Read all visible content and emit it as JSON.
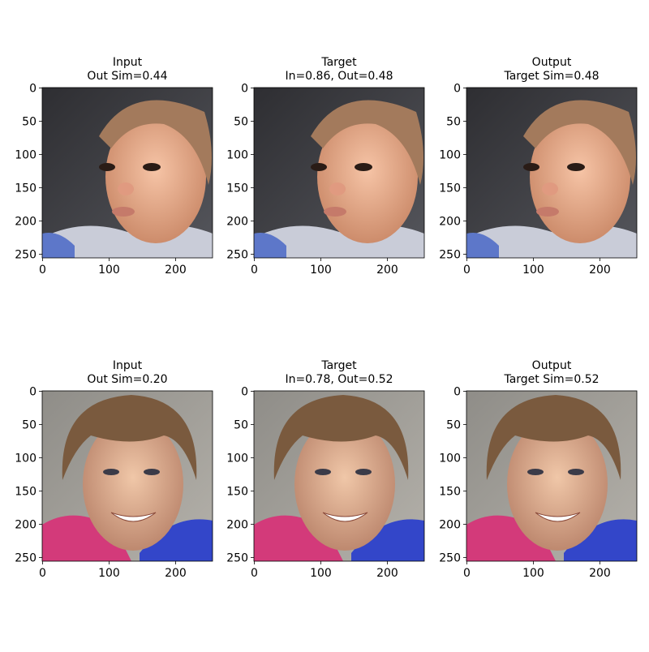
{
  "chart_data": [
    {
      "type": "image",
      "title": "Input",
      "subtitle": "Out Sim=0.44",
      "xlim": [
        -0.5,
        255.5
      ],
      "ylim": [
        255.5,
        -0.5
      ],
      "xticks": [
        0,
        100,
        200
      ],
      "yticks": [
        0,
        50,
        100,
        150,
        200,
        250
      ]
    },
    {
      "type": "image",
      "title": "Target",
      "subtitle": "In=0.86, Out=0.48",
      "xlim": [
        -0.5,
        255.5
      ],
      "ylim": [
        255.5,
        -0.5
      ],
      "xticks": [
        0,
        100,
        200
      ],
      "yticks": [
        0,
        50,
        100,
        150,
        200,
        250
      ]
    },
    {
      "type": "image",
      "title": "Output",
      "subtitle": "Target Sim=0.48",
      "xlim": [
        -0.5,
        255.5
      ],
      "ylim": [
        255.5,
        -0.5
      ],
      "xticks": [
        0,
        100,
        200
      ],
      "yticks": [
        0,
        50,
        100,
        150,
        200,
        250
      ]
    },
    {
      "type": "image",
      "title": "Input",
      "subtitle": "Out Sim=0.20",
      "xlim": [
        -0.5,
        255.5
      ],
      "ylim": [
        255.5,
        -0.5
      ],
      "xticks": [
        0,
        100,
        200
      ],
      "yticks": [
        0,
        50,
        100,
        150,
        200,
        250
      ]
    },
    {
      "type": "image",
      "title": "Target",
      "subtitle": "In=0.78, Out=0.52",
      "xlim": [
        -0.5,
        255.5
      ],
      "ylim": [
        255.5,
        -0.5
      ],
      "xticks": [
        0,
        100,
        200
      ],
      "yticks": [
        0,
        50,
        100,
        150,
        200,
        250
      ]
    },
    {
      "type": "image",
      "title": "Output",
      "subtitle": "Target Sim=0.52",
      "xlim": [
        -0.5,
        255.5
      ],
      "ylim": [
        255.5,
        -0.5
      ],
      "xticks": [
        0,
        100,
        200
      ],
      "yticks": [
        0,
        50,
        100,
        150,
        200,
        250
      ]
    }
  ]
}
